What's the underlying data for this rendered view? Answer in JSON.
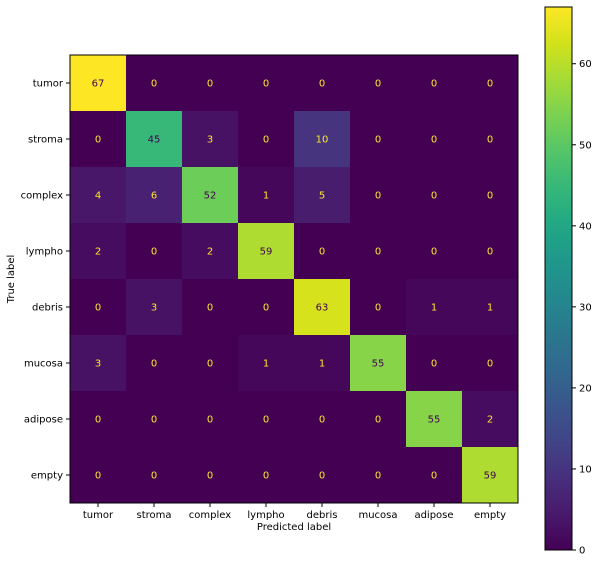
{
  "chart_data": {
    "type": "heatmap",
    "title": "",
    "xlabel": "Predicted label",
    "ylabel": "True label",
    "x_categories": [
      "tumor",
      "stroma",
      "complex",
      "lympho",
      "debris",
      "mucosa",
      "adipose",
      "empty"
    ],
    "y_categories": [
      "tumor",
      "stroma",
      "complex",
      "lympho",
      "debris",
      "mucosa",
      "adipose",
      "empty"
    ],
    "matrix": [
      [
        67,
        0,
        0,
        0,
        0,
        0,
        0,
        0
      ],
      [
        0,
        45,
        3,
        0,
        10,
        0,
        0,
        0
      ],
      [
        4,
        6,
        52,
        1,
        5,
        0,
        0,
        0
      ],
      [
        2,
        0,
        2,
        59,
        0,
        0,
        0,
        0
      ],
      [
        0,
        3,
        0,
        0,
        63,
        0,
        1,
        1
      ],
      [
        3,
        0,
        0,
        1,
        1,
        55,
        0,
        0
      ],
      [
        0,
        0,
        0,
        0,
        0,
        0,
        55,
        2
      ],
      [
        0,
        0,
        0,
        0,
        0,
        0,
        0,
        59
      ]
    ],
    "colormap": "viridis",
    "value_range": [
      0,
      67
    ],
    "colorbar_ticks": [
      0,
      10,
      20,
      30,
      40,
      50,
      60
    ],
    "grid": false,
    "colorbar_position": "right"
  }
}
